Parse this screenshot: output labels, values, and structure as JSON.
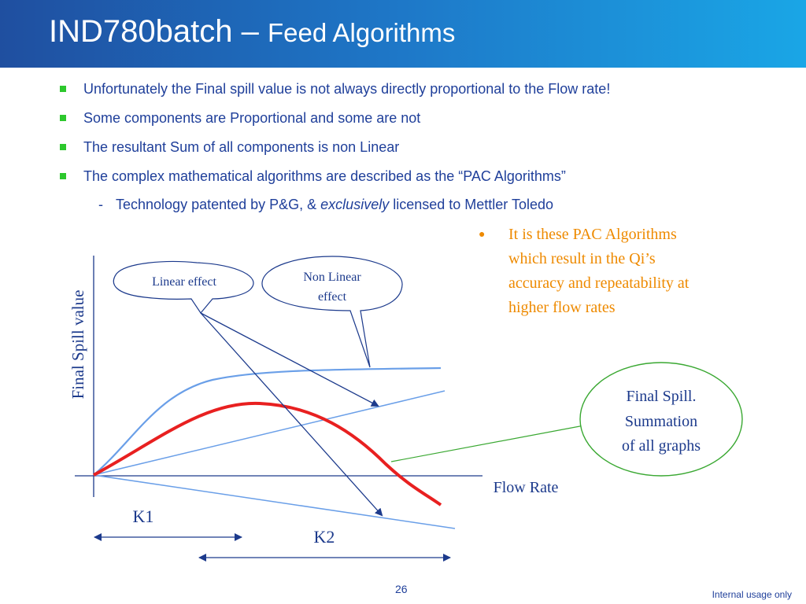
{
  "title": {
    "main": "IND780batch – ",
    "sub": "Feed Algorithms"
  },
  "bullets": [
    "Unfortunately the Final spill value is not always directly proportional to the Flow rate!",
    "Some components are Proportional and some are not",
    "The resultant Sum of all components is non Linear",
    "The complex mathematical algorithms are described as the “PAC Algorithms”"
  ],
  "sub_bullet": {
    "dash": "-",
    "pre": "Technology patented by P&G, & ",
    "italic": "exclusively",
    "post": " licensed to Mettler Toledo"
  },
  "note": {
    "bullet": "●",
    "lines": [
      "It is these PAC Algorithms",
      "which result in the Qi’s",
      "accuracy and repeatability at",
      "higher flow rates"
    ]
  },
  "diagram": {
    "y_axis_label": "Final Spill value",
    "x_axis_label": "Flow Rate",
    "linear_callout": "Linear effect",
    "nonlinear_callout": [
      "Non Linear",
      "effect"
    ],
    "final_callout": [
      "Final Spill.",
      "Summation",
      "of all graphs"
    ],
    "k1": "K1",
    "k2": "K2",
    "colors": {
      "curve_blue": "#6a9fe8",
      "sum_red": "#e82020",
      "arrow_navy": "#1c3a8c",
      "callout_green": "#3aa832",
      "note_orange": "#ee8a00"
    }
  },
  "footer": {
    "page": "26",
    "right": "Internal usage only"
  }
}
